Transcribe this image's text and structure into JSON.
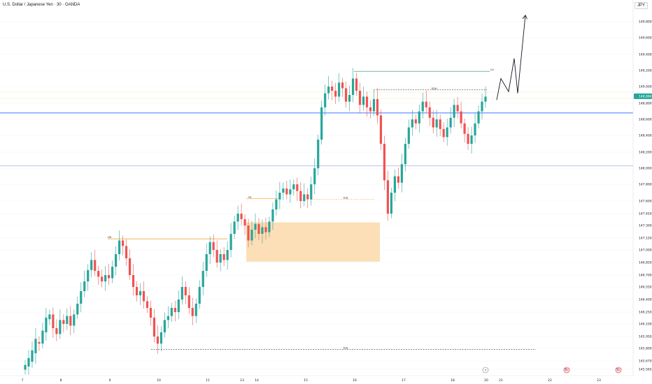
{
  "header": {
    "title": "U.S. Dollar / Japanese Yen · 30 · OANDA",
    "currency": "JPY"
  },
  "colors": {
    "up": "#26a69a",
    "down": "#ef5350",
    "blue_line": "#2962ff",
    "orange": "#f7a21b",
    "zone": "#fcd9a9",
    "teal_line": "#2e8b72",
    "price_tag": "#26a69a",
    "grid": "#f0f3fa"
  },
  "chart_data": {
    "type": "candlestick",
    "title": "U.S. Dollar / Japanese Yen · 30 · OANDA",
    "y_ticks": [
      "149.800",
      "149.600",
      "149.400",
      "149.200",
      "149.000",
      "148.800",
      "148.600",
      "148.400",
      "148.200",
      "148.000",
      "147.800",
      "147.600",
      "147.450",
      "147.300",
      "147.150",
      "147.000",
      "146.850",
      "146.700",
      "146.550",
      "146.400",
      "146.250",
      "146.100",
      "145.950",
      "145.800",
      "145.670",
      "145.565"
    ],
    "x_ticks": [
      "7",
      "8",
      "9",
      "10",
      "11",
      "13",
      "14",
      "15",
      "16",
      "17",
      "18",
      "20",
      "21",
      "22",
      "23"
    ],
    "current_price": "148.884",
    "ylim": [
      145.55,
      149.95
    ],
    "levels": [
      {
        "name": "blue-line",
        "price": 148.68,
        "label": ""
      },
      {
        "name": "light-blue-line",
        "price": 148.03,
        "label": ""
      },
      {
        "name": "level-high",
        "price": 149.19,
        "label": "LH"
      },
      {
        "name": "level-eqh",
        "price": 148.96,
        "label": "EQH"
      },
      {
        "name": "level-eql",
        "price": 147.62,
        "label": "EQL"
      },
      {
        "name": "level-eql-low",
        "price": 145.79,
        "label": "EQL"
      },
      {
        "name": "level-hh",
        "price": 147.14,
        "label": "HH"
      },
      {
        "name": "level-hl",
        "price": 147.63,
        "label": "HL"
      }
    ],
    "zone": {
      "top": 147.34,
      "bottom": 146.86
    },
    "projection": [
      148.84,
      149.1,
      148.94,
      149.35,
      148.92,
      149.88
    ],
    "candles": [
      [
        145.56,
        145.62
      ],
      [
        145.6,
        145.7
      ],
      [
        145.66,
        145.78
      ],
      [
        145.75,
        145.92
      ],
      [
        145.88,
        145.86
      ],
      [
        145.86,
        146.02
      ],
      [
        146.0,
        146.18
      ],
      [
        146.16,
        146.22
      ],
      [
        146.22,
        146.05
      ],
      [
        146.05,
        145.98
      ],
      [
        145.98,
        146.15
      ],
      [
        146.15,
        146.1
      ],
      [
        146.1,
        146.2
      ],
      [
        146.2,
        146.08
      ],
      [
        146.08,
        146.22
      ],
      [
        146.22,
        146.35
      ],
      [
        146.35,
        146.5
      ],
      [
        146.5,
        146.62
      ],
      [
        146.62,
        146.76
      ],
      [
        146.76,
        146.88
      ],
      [
        146.88,
        146.75
      ],
      [
        146.75,
        146.68
      ],
      [
        146.68,
        146.62
      ],
      [
        146.62,
        146.7
      ],
      [
        146.7,
        146.66
      ],
      [
        146.66,
        146.8
      ],
      [
        146.8,
        146.95
      ],
      [
        146.95,
        147.12
      ],
      [
        147.12,
        147.05
      ],
      [
        147.05,
        146.9
      ],
      [
        146.9,
        146.7
      ],
      [
        146.7,
        146.55
      ],
      [
        146.55,
        146.45
      ],
      [
        146.45,
        146.5
      ],
      [
        146.5,
        146.38
      ],
      [
        146.38,
        146.3
      ],
      [
        146.3,
        146.18
      ],
      [
        146.18,
        145.95
      ],
      [
        145.95,
        145.86
      ],
      [
        145.86,
        146.0
      ],
      [
        146.0,
        146.15
      ],
      [
        146.15,
        146.2
      ],
      [
        146.2,
        146.3
      ],
      [
        146.3,
        146.25
      ],
      [
        146.25,
        146.4
      ],
      [
        146.4,
        146.55
      ],
      [
        146.55,
        146.45
      ],
      [
        146.45,
        146.3
      ],
      [
        146.3,
        146.2
      ],
      [
        146.2,
        146.35
      ],
      [
        146.35,
        146.55
      ],
      [
        146.55,
        146.75
      ],
      [
        146.75,
        146.95
      ],
      [
        146.95,
        147.1
      ],
      [
        147.1,
        147.0
      ],
      [
        147.0,
        146.85
      ],
      [
        146.85,
        146.95
      ],
      [
        146.95,
        146.88
      ],
      [
        146.88,
        147.0
      ],
      [
        147.0,
        147.2
      ],
      [
        147.2,
        147.35
      ],
      [
        147.35,
        147.45
      ],
      [
        147.45,
        147.38
      ],
      [
        147.38,
        147.3
      ],
      [
        147.3,
        147.12
      ],
      [
        147.12,
        147.25
      ],
      [
        147.25,
        147.32
      ],
      [
        147.32,
        147.2
      ],
      [
        147.2,
        147.28
      ],
      [
        147.28,
        147.22
      ],
      [
        147.22,
        147.35
      ],
      [
        147.35,
        147.5
      ],
      [
        147.5,
        147.62
      ],
      [
        147.62,
        147.7
      ],
      [
        147.7,
        147.75
      ],
      [
        147.75,
        147.68
      ],
      [
        147.68,
        147.74
      ],
      [
        147.74,
        147.8
      ],
      [
        147.8,
        147.72
      ],
      [
        147.72,
        147.6
      ],
      [
        147.6,
        147.68
      ],
      [
        147.68,
        147.62
      ],
      [
        147.62,
        147.8
      ],
      [
        147.8,
        148.0
      ],
      [
        148.0,
        148.35
      ],
      [
        148.35,
        148.75
      ],
      [
        148.75,
        148.92
      ],
      [
        148.92,
        149.0
      ],
      [
        149.0,
        148.95
      ],
      [
        148.95,
        148.88
      ],
      [
        148.88,
        149.05
      ],
      [
        149.05,
        148.98
      ],
      [
        148.98,
        148.82
      ],
      [
        148.82,
        148.9
      ],
      [
        148.9,
        149.1
      ],
      [
        149.1,
        148.95
      ],
      [
        148.95,
        148.78
      ],
      [
        148.78,
        148.88
      ],
      [
        148.88,
        148.75
      ],
      [
        148.75,
        148.7
      ],
      [
        148.7,
        148.85
      ],
      [
        148.85,
        148.65
      ],
      [
        148.65,
        148.3
      ],
      [
        148.3,
        147.85
      ],
      [
        147.85,
        147.45
      ],
      [
        147.45,
        147.7
      ],
      [
        147.7,
        147.9
      ],
      [
        147.9,
        147.82
      ],
      [
        147.82,
        148.05
      ],
      [
        148.05,
        148.3
      ],
      [
        148.3,
        148.5
      ],
      [
        148.5,
        148.6
      ],
      [
        148.6,
        148.55
      ],
      [
        148.55,
        148.7
      ],
      [
        148.7,
        148.82
      ],
      [
        148.82,
        148.75
      ],
      [
        148.75,
        148.62
      ],
      [
        148.62,
        148.5
      ],
      [
        148.5,
        148.6
      ],
      [
        148.6,
        148.48
      ],
      [
        148.48,
        148.38
      ],
      [
        148.38,
        148.5
      ],
      [
        148.5,
        148.62
      ],
      [
        148.62,
        148.78
      ],
      [
        148.78,
        148.7
      ],
      [
        148.7,
        148.55
      ],
      [
        148.55,
        148.42
      ],
      [
        148.42,
        148.3
      ],
      [
        148.3,
        148.4
      ],
      [
        148.4,
        148.55
      ],
      [
        148.55,
        148.7
      ],
      [
        148.7,
        148.82
      ],
      [
        148.82,
        148.88
      ]
    ]
  }
}
